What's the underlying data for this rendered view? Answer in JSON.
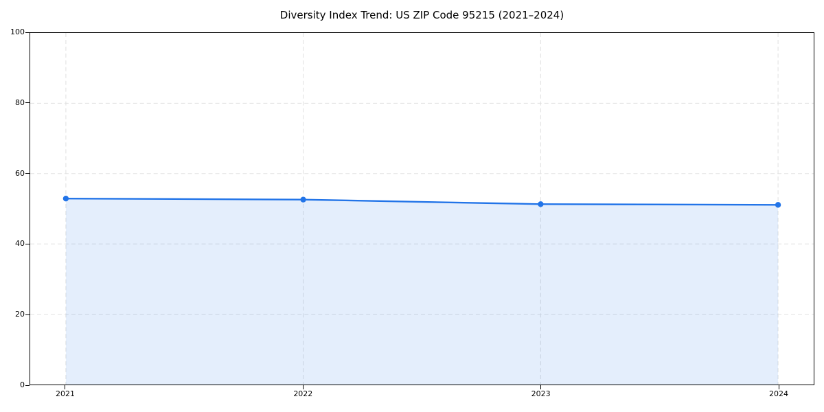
{
  "chart_data": {
    "type": "line",
    "title": "Diversity Index Trend: US ZIP Code 95215 (2021–2024)",
    "x": [
      2021,
      2022,
      2023,
      2024
    ],
    "xtick_labels": [
      "2021",
      "2022",
      "2023",
      "2024"
    ],
    "series": [
      {
        "name": "Diversity Index",
        "values": [
          52.9,
          52.6,
          51.3,
          51.1
        ]
      }
    ],
    "xlabel": "",
    "ylabel": "",
    "xlim": [
      2020.85,
      2024.15
    ],
    "ylim": [
      0,
      100
    ],
    "yticks": [
      0,
      20,
      40,
      60,
      80,
      100
    ],
    "grid": true,
    "grid_style": "dashed",
    "legend": false,
    "colors": {
      "line": "#2274e8",
      "marker": "#2274e8",
      "fill": "rgba(34, 116, 232, 0.12)",
      "grid": "#e0e0e0",
      "axis": "#000000",
      "background": "#ffffff"
    }
  }
}
